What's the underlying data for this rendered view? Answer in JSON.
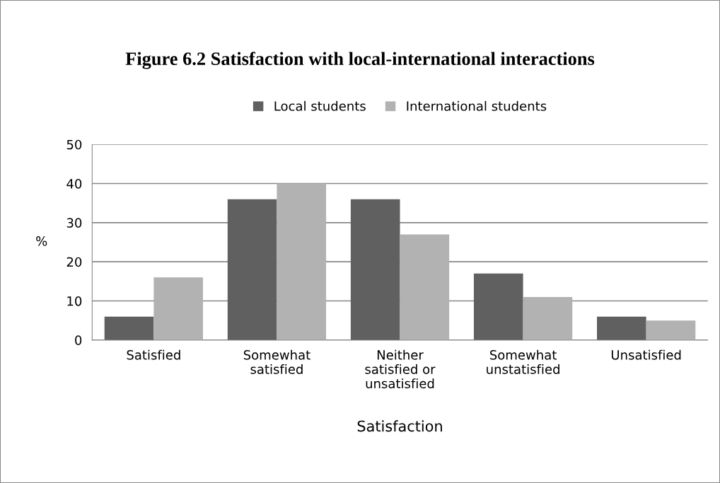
{
  "chart_data": {
    "type": "bar",
    "title": "Figure 6.2 Satisfaction with local-international interactions",
    "xlabel": "Satisfaction",
    "ylabel": "%",
    "categories": [
      "Satisfied",
      "Somewhat\nsatisfied",
      "Neither\nsatisfied or\nunsatisfied",
      "Somewhat\nunstatisfied",
      "Unsatisfied"
    ],
    "series": [
      {
        "name": "Local students",
        "color": "#606060",
        "values": [
          6,
          36,
          36,
          17,
          6
        ]
      },
      {
        "name": "International students",
        "color": "#b2b2b2",
        "values": [
          16,
          40,
          27,
          11,
          5
        ]
      }
    ],
    "ylim": [
      0,
      50
    ],
    "yticks": [
      0,
      10,
      20,
      30,
      40,
      50
    ],
    "grid": "y",
    "legend": "top"
  }
}
